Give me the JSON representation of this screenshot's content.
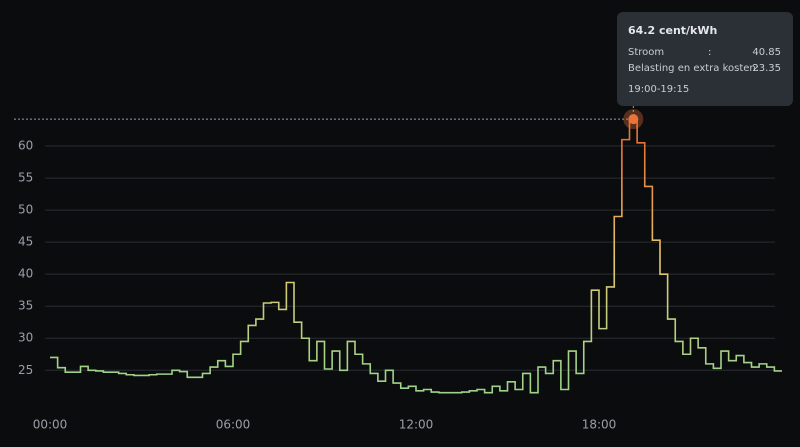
{
  "chart_data": {
    "type": "step-line",
    "xlim": [
      0,
      24
    ],
    "xticks": [
      {
        "value": 0,
        "label": "00:00"
      },
      {
        "value": 6,
        "label": "06:00"
      },
      {
        "value": 12,
        "label": "12:00"
      },
      {
        "value": 18,
        "label": "18:00"
      }
    ],
    "ylim": [
      18.8,
      65
    ],
    "yticks": [
      25,
      30,
      35,
      40,
      45,
      50,
      55,
      60
    ],
    "grid": true,
    "line_colors": [
      "#9fd38a",
      "#e6c86c",
      "#e8743a"
    ],
    "values": [
      27,
      25.4,
      24.7,
      24.7,
      25.6,
      25.0,
      24.9,
      24.7,
      24.7,
      24.5,
      24.3,
      24.2,
      24.2,
      24.3,
      24.4,
      24.4,
      25.0,
      24.8,
      23.9,
      23.9,
      24.5,
      25.5,
      26.5,
      25.6,
      27.5,
      29.5,
      32,
      33,
      35.5,
      35.6,
      34.5,
      38.7,
      32.5,
      30,
      26.5,
      29.5,
      25.2,
      28,
      25,
      29.5,
      27.5,
      26,
      24.5,
      23.3,
      25,
      23,
      22.2,
      22.5,
      21.8,
      22,
      21.6,
      21.5,
      21.5,
      21.5,
      21.6,
      21.8,
      22,
      21.5,
      22.5,
      21.8,
      23.2,
      22,
      24.5,
      21.5,
      25.5,
      24.5,
      26.5,
      22,
      28,
      24.5,
      29.5,
      37.5,
      31.5,
      38,
      49,
      61,
      64.2,
      60.5,
      53.7,
      45.3,
      40,
      33,
      29.5,
      27.5,
      30,
      28.5,
      26,
      25.3,
      28,
      26.5,
      27.3,
      26.2,
      25.5,
      26,
      25.5,
      24.9
    ],
    "tooltip": {
      "index": 76,
      "title": "64.2 cent/kWh",
      "rows": [
        [
          "Stroom",
          ":",
          "40.85"
        ],
        [
          "Belasting en extra kosten:",
          "23.35"
        ]
      ],
      "period": "19:00-19:15"
    }
  }
}
